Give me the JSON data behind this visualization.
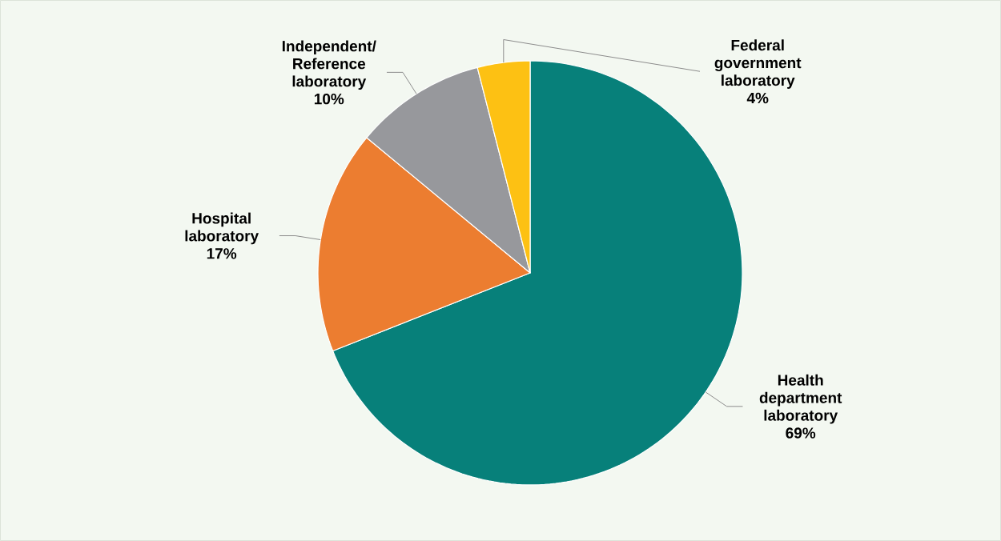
{
  "chart_data": {
    "type": "pie",
    "categories": [
      "Health department laboratory",
      "Hospital laboratory",
      "Independent/ Reference laboratory",
      "Federal government laboratory"
    ],
    "values": [
      69,
      17,
      10,
      4
    ],
    "colors": [
      "#07807a",
      "#ec7d30",
      "#97989c",
      "#fdc113"
    ],
    "value_labels": [
      "69%",
      "17%",
      "10%",
      "4%"
    ]
  }
}
